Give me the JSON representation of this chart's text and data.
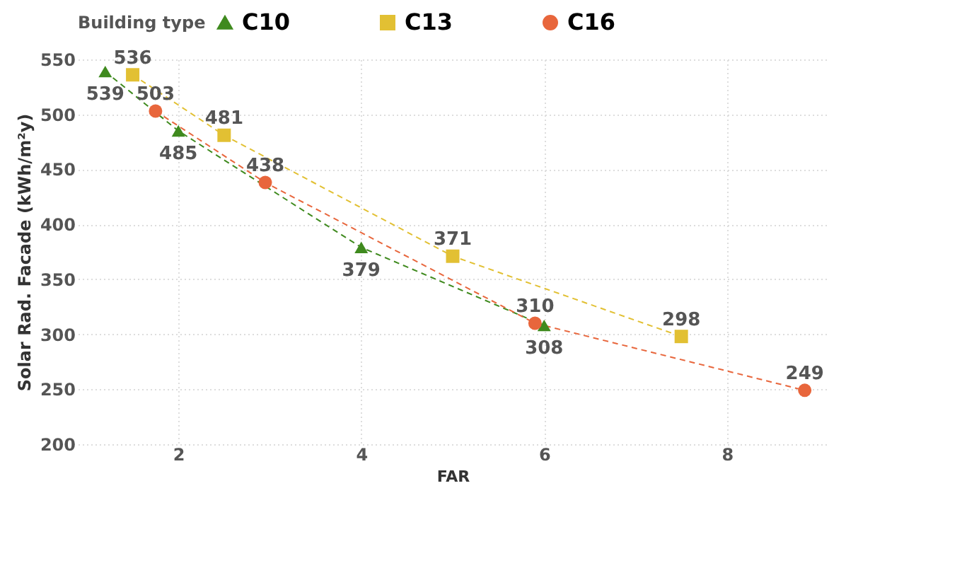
{
  "chart_data": {
    "type": "line",
    "xlabel": "FAR",
    "ylabel": "Solar Rad. Facade (kWh/m²y)",
    "legend_title": "Building type",
    "series": [
      {
        "name": "C10",
        "color": "#3f8a1e",
        "marker": "triangle",
        "x": [
          1.2,
          2,
          4,
          6
        ],
        "values": [
          539,
          485,
          379,
          308
        ]
      },
      {
        "name": "C13",
        "color": "#e2c033",
        "marker": "square",
        "x": [
          1.5,
          2.5,
          5,
          7.5
        ],
        "values": [
          536,
          481,
          371,
          298
        ]
      },
      {
        "name": "C16",
        "color": "#e8663c",
        "marker": "circle",
        "x": [
          1.75,
          2.95,
          5.9,
          8.85
        ],
        "values": [
          503,
          438,
          310,
          249
        ]
      }
    ],
    "xlim": [
      0.9,
      9.1
    ],
    "xticks": [
      2,
      4,
      6,
      8
    ],
    "ylim": [
      200,
      550
    ],
    "yticks": [
      200,
      250,
      300,
      350,
      400,
      450,
      500,
      550
    ],
    "grid": true,
    "legend": "top",
    "line_style": "dashed",
    "data_labels": true
  }
}
